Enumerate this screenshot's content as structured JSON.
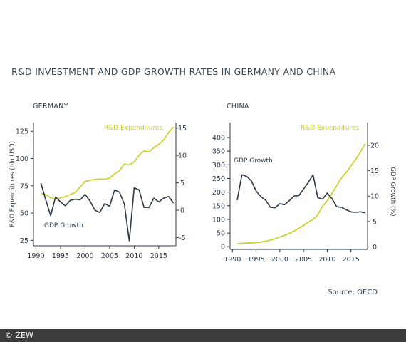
{
  "title": "R&D INVESTMENT AND GDP GROWTH RATES IN GERMANY AND CHINA",
  "source": "Source: OECD",
  "copyright": "© ZEW",
  "colors": {
    "rd": "#c8cf1c",
    "gdp": "#2b3845",
    "axis": "#2b3845",
    "text": "#2b3845"
  },
  "chart_data": [
    {
      "type": "line",
      "panel_title": "GERMANY",
      "xlabel": "",
      "ylabel_left": "R&D Expenditures (bln USD)",
      "ylabel_right": "",
      "x_ticks": [
        "1990",
        "1995",
        "2000",
        "2005",
        "2010",
        "2015"
      ],
      "y_left_ticks": [
        "25",
        "50",
        "75",
        "100",
        "125"
      ],
      "y_right_ticks": [
        "-5",
        "0",
        "5",
        "10",
        "15"
      ],
      "ylim_left": [
        20,
        133
      ],
      "ylim_right": [
        -6.5,
        16
      ],
      "xlim": [
        1989.5,
        2018.5
      ],
      "grid": false,
      "series": [
        {
          "name": "R&D Expenditures",
          "axis": "left",
          "color": "#c8cf1c",
          "label_position": "top",
          "x": [
            1991,
            1992,
            1993,
            1994,
            1995,
            1996,
            1997,
            1998,
            1999,
            2000,
            2001,
            2002,
            2003,
            2004,
            2005,
            2006,
            2007,
            2008,
            2009,
            2010,
            2011,
            2012,
            2013,
            2014,
            2015,
            2016,
            2017,
            2018
          ],
          "values": [
            68,
            67,
            64,
            63,
            64,
            65,
            67,
            69,
            74,
            79,
            80,
            81,
            81,
            81,
            82,
            86,
            89,
            95,
            94,
            97,
            103,
            107,
            106,
            110,
            113,
            117,
            124,
            129
          ]
        },
        {
          "name": "GDP Growth",
          "axis": "right",
          "color": "#2b3845",
          "label_position": "bottom-left",
          "x": [
            1991,
            1992,
            1993,
            1994,
            1995,
            1996,
            1997,
            1998,
            1999,
            2000,
            2001,
            2002,
            2003,
            2004,
            2005,
            2006,
            2007,
            2008,
            2009,
            2010,
            2011,
            2012,
            2013,
            2014,
            2015,
            2016,
            2017,
            2018
          ],
          "values": [
            5.0,
            1.9,
            -1.0,
            2.4,
            1.5,
            0.8,
            1.8,
            2.0,
            1.9,
            2.9,
            1.7,
            0.0,
            -0.4,
            1.2,
            0.7,
            3.7,
            3.3,
            1.1,
            -5.6,
            4.1,
            3.7,
            0.5,
            0.5,
            2.2,
            1.5,
            2.2,
            2.5,
            1.3
          ]
        }
      ]
    },
    {
      "type": "line",
      "panel_title": "CHINA",
      "xlabel": "",
      "ylabel_left": "",
      "ylabel_right": "GDP Growth (%)",
      "x_ticks": [
        "1990",
        "1995",
        "2000",
        "2005",
        "2010",
        "2015"
      ],
      "y_left_ticks": [
        "0",
        "50",
        "100",
        "150",
        "200",
        "250",
        "300",
        "350",
        "400"
      ],
      "y_right_ticks": [
        "0",
        "5",
        "10",
        "15",
        "20"
      ],
      "ylim_left": [
        -10,
        455
      ],
      "ylim_right": [
        -0.5,
        24.5
      ],
      "xlim": [
        1989.5,
        2018.5
      ],
      "grid": false,
      "series": [
        {
          "name": "R&D Expenditures",
          "axis": "left",
          "color": "#c8cf1c",
          "label_position": "top",
          "x": [
            1991,
            1992,
            1993,
            1994,
            1995,
            1996,
            1997,
            1998,
            1999,
            2000,
            2001,
            2002,
            2003,
            2004,
            2005,
            2006,
            2007,
            2008,
            2009,
            2010,
            2011,
            2012,
            2013,
            2014,
            2015,
            2016,
            2017,
            2018
          ],
          "values": [
            10,
            12,
            13,
            14,
            15,
            17,
            20,
            24,
            29,
            36,
            41,
            49,
            57,
            67,
            78,
            90,
            100,
            117,
            148,
            168,
            195,
            224,
            253,
            272,
            296,
            320,
            347,
            378
          ]
        },
        {
          "name": "GDP Growth",
          "axis": "right",
          "color": "#2b3845",
          "label_position": "top-left",
          "x": [
            1991,
            1992,
            1993,
            1994,
            1995,
            1996,
            1997,
            1998,
            1999,
            2000,
            2001,
            2002,
            2003,
            2004,
            2005,
            2006,
            2007,
            2008,
            2009,
            2010,
            2011,
            2012,
            2013,
            2014,
            2015,
            2016,
            2017,
            2018
          ],
          "values": [
            9.2,
            14.2,
            13.9,
            13.0,
            11.0,
            9.9,
            9.2,
            7.8,
            7.7,
            8.5,
            8.3,
            9.1,
            10.0,
            10.1,
            11.4,
            12.7,
            14.2,
            9.7,
            9.4,
            10.6,
            9.5,
            7.9,
            7.8,
            7.3,
            6.9,
            6.8,
            6.9,
            6.7
          ]
        }
      ]
    }
  ]
}
